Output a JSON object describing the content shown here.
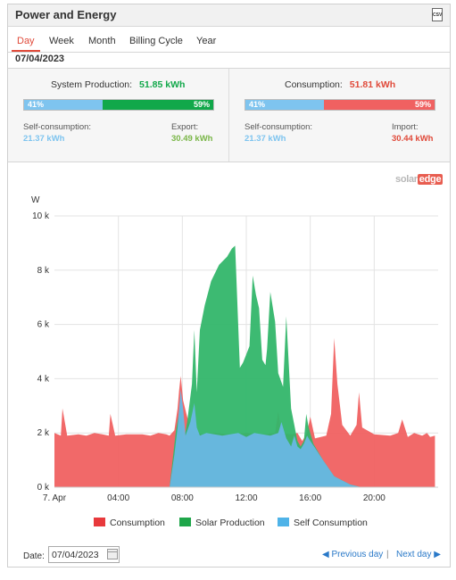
{
  "header": {
    "title": "Power and Energy",
    "export_icon": "csv-file-icon",
    "export_icon_text": "CSV"
  },
  "tabs": [
    {
      "label": "Day",
      "active": true
    },
    {
      "label": "Week",
      "active": false
    },
    {
      "label": "Month",
      "active": false
    },
    {
      "label": "Billing Cycle",
      "active": false
    },
    {
      "label": "Year",
      "active": false
    }
  ],
  "selected_date": "07/04/2023",
  "summary": {
    "production": {
      "label": "System Production:",
      "value": "51.85 kWh",
      "left_pct": "41%",
      "right_pct": "59%",
      "left_label": "Self-consumption:",
      "left_value": "21.37 kWh",
      "right_label": "Export:",
      "right_value": "30.49 kWh"
    },
    "consumption": {
      "label": "Consumption:",
      "value": "51.81 kWh",
      "left_pct": "41%",
      "right_pct": "59%",
      "left_label": "Self-consumption:",
      "left_value": "21.37 kWh",
      "right_label": "Import:",
      "right_value": "30.44 kWh"
    }
  },
  "colors": {
    "consumption": "#f06161",
    "production": "#33b66a",
    "self": "#69b7e4",
    "bar_self": "#7ec4ef",
    "bar_export": "#11a84a",
    "bar_import": "#f06161",
    "value_green": "#7ab648",
    "value_blue": "#7ec4ef",
    "value_red": "#e04a3a"
  },
  "logo": {
    "part1": "solar",
    "part2": "edge"
  },
  "chart_data": {
    "type": "area",
    "ylabel": "W",
    "y_ticks": [
      "0 k",
      "2 k",
      "4 k",
      "6 k",
      "8 k",
      "10 k"
    ],
    "y_tick_values": [
      0,
      2000,
      4000,
      6000,
      8000,
      10000
    ],
    "ylim": [
      0,
      10000
    ],
    "x_ticks": [
      "7. Apr",
      "04:00",
      "08:00",
      "12:00",
      "16:00",
      "20:00"
    ],
    "x_tick_values": [
      0,
      4,
      8,
      12,
      16,
      20
    ],
    "xlim": [
      0,
      24
    ],
    "legend_position": "bottom",
    "grid": true,
    "series": [
      {
        "name": "Consumption",
        "points": [
          [
            0,
            2000
          ],
          [
            0.4,
            1900
          ],
          [
            0.5,
            2900
          ],
          [
            0.8,
            1900
          ],
          [
            1.5,
            1950
          ],
          [
            2,
            1900
          ],
          [
            2.5,
            2000
          ],
          [
            3,
            1950
          ],
          [
            3.4,
            1900
          ],
          [
            3.5,
            2700
          ],
          [
            3.8,
            1900
          ],
          [
            4.5,
            1950
          ],
          [
            5,
            1950
          ],
          [
            5.5,
            1950
          ],
          [
            6,
            1900
          ],
          [
            6.5,
            2000
          ],
          [
            7,
            1950
          ],
          [
            7.2,
            1900
          ],
          [
            7.5,
            2100
          ],
          [
            7.7,
            2900
          ],
          [
            7.8,
            3600
          ],
          [
            7.9,
            4100
          ],
          [
            8.05,
            3200
          ],
          [
            8.3,
            2600
          ],
          [
            8.5,
            2200
          ],
          [
            8.8,
            2000
          ],
          [
            9.3,
            1950
          ],
          [
            10,
            2000
          ],
          [
            11,
            1950
          ],
          [
            12,
            2000
          ],
          [
            13,
            1950
          ],
          [
            13.8,
            2000
          ],
          [
            14,
            2800
          ],
          [
            14.2,
            2000
          ],
          [
            14.8,
            1950
          ],
          [
            15.2,
            2000
          ],
          [
            15.5,
            1700
          ],
          [
            15.8,
            2000
          ],
          [
            16,
            2600
          ],
          [
            16.3,
            1800
          ],
          [
            17,
            1900
          ],
          [
            17.3,
            2700
          ],
          [
            17.5,
            5500
          ],
          [
            17.7,
            3800
          ],
          [
            18,
            2300
          ],
          [
            18.5,
            1900
          ],
          [
            18.9,
            2300
          ],
          [
            19.05,
            3500
          ],
          [
            19.25,
            2200
          ],
          [
            20,
            1950
          ],
          [
            21,
            1900
          ],
          [
            21.5,
            2000
          ],
          [
            21.75,
            2500
          ],
          [
            22.1,
            1850
          ],
          [
            22.5,
            2000
          ],
          [
            23,
            1900
          ],
          [
            23.3,
            2000
          ],
          [
            23.5,
            1850
          ],
          [
            23.8,
            1900
          ]
        ]
      },
      {
        "name": "Solar Production",
        "points": [
          [
            7.2,
            0
          ],
          [
            7.6,
            2100
          ],
          [
            7.9,
            3100
          ],
          [
            8.1,
            1700
          ],
          [
            8.3,
            2400
          ],
          [
            8.6,
            3800
          ],
          [
            8.75,
            5800
          ],
          [
            8.9,
            3500
          ],
          [
            9.1,
            5800
          ],
          [
            9.4,
            6700
          ],
          [
            9.8,
            7600
          ],
          [
            10.3,
            8200
          ],
          [
            10.8,
            8500
          ],
          [
            11.1,
            8800
          ],
          [
            11.3,
            8900
          ],
          [
            11.6,
            4400
          ],
          [
            11.8,
            4600
          ],
          [
            12.2,
            5200
          ],
          [
            12.4,
            7800
          ],
          [
            12.6,
            7100
          ],
          [
            12.8,
            6600
          ],
          [
            13.0,
            4700
          ],
          [
            13.2,
            4500
          ],
          [
            13.3,
            5100
          ],
          [
            13.5,
            7200
          ],
          [
            13.8,
            6100
          ],
          [
            14.0,
            4200
          ],
          [
            14.3,
            3700
          ],
          [
            14.5,
            6300
          ],
          [
            14.8,
            2900
          ],
          [
            15.0,
            2300
          ],
          [
            15.2,
            1700
          ],
          [
            15.4,
            1500
          ],
          [
            15.6,
            1700
          ],
          [
            15.75,
            2700
          ],
          [
            15.9,
            2200
          ],
          [
            16.2,
            1600
          ],
          [
            16.8,
            1000
          ],
          [
            17.5,
            400
          ],
          [
            18.5,
            100
          ],
          [
            19.2,
            0
          ]
        ]
      },
      {
        "name": "Self Consumption",
        "points": [
          [
            7.2,
            0
          ],
          [
            7.5,
            1200
          ],
          [
            7.7,
            2200
          ],
          [
            7.9,
            3600
          ],
          [
            8.05,
            2900
          ],
          [
            8.2,
            1900
          ],
          [
            8.5,
            2400
          ],
          [
            8.75,
            3100
          ],
          [
            8.9,
            2200
          ],
          [
            9.1,
            1900
          ],
          [
            9.5,
            2000
          ],
          [
            10,
            1950
          ],
          [
            10.5,
            1900
          ],
          [
            11,
            1950
          ],
          [
            11.5,
            2000
          ],
          [
            12,
            1850
          ],
          [
            12.5,
            2000
          ],
          [
            13,
            1950
          ],
          [
            13.5,
            1900
          ],
          [
            14,
            2000
          ],
          [
            14.2,
            2400
          ],
          [
            14.5,
            1800
          ],
          [
            14.8,
            1500
          ],
          [
            15.0,
            1900
          ],
          [
            15.2,
            1500
          ],
          [
            15.4,
            1400
          ],
          [
            15.6,
            1600
          ],
          [
            15.8,
            1900
          ],
          [
            16.0,
            1700
          ],
          [
            16.3,
            1450
          ],
          [
            16.8,
            1000
          ],
          [
            17.5,
            400
          ],
          [
            18.5,
            100
          ],
          [
            19.2,
            0
          ]
        ]
      }
    ]
  },
  "legend": [
    {
      "label": "Consumption",
      "color": "#e8393c"
    },
    {
      "label": "Solar Production",
      "color": "#1fa64a"
    },
    {
      "label": "Self Consumption",
      "color": "#4fb3e8"
    }
  ],
  "footer": {
    "date_label": "Date:",
    "date_value": "07/04/2023",
    "prev_label": "Previous day",
    "separator": "|",
    "next_label": "Next day"
  }
}
